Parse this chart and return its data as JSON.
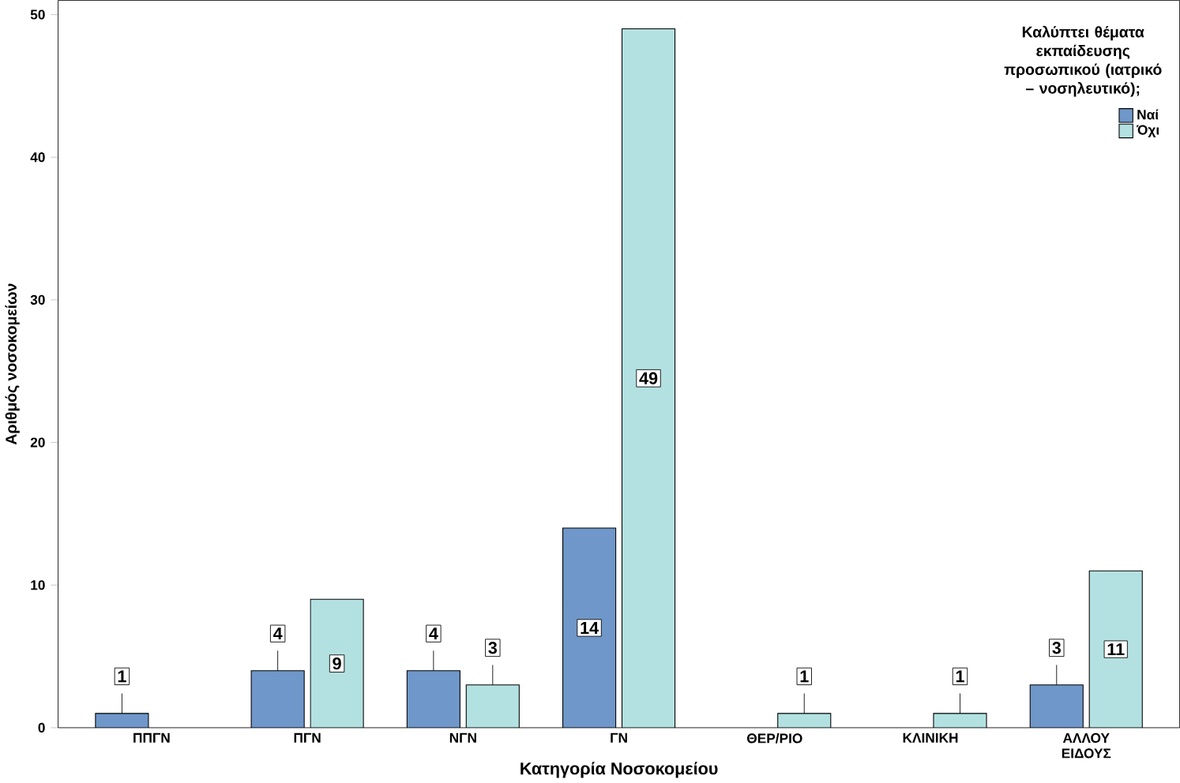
{
  "chart_data": {
    "type": "bar",
    "xlabel": "Κατηγορία Νοσοκομείου",
    "ylabel": "Αριθμός νοσοκομείων",
    "legend_title": "Καλύπτει θέματα εκπαίδευσης προσωπικού (ιατρικό – νοσηλευτικό);",
    "categories": [
      "ΠΠΓΝ",
      "ΠΓΝ",
      "ΝΓΝ",
      "ΓΝ",
      "ΘΕΡ/ΡΙΟ",
      "ΚΛΙΝΙΚΗ",
      "ΑΛΛΟΥ ΕΙΔΟΥΣ"
    ],
    "series": [
      {
        "name": "Ναί",
        "color": "#6f97c9",
        "values": [
          1,
          4,
          4,
          14,
          null,
          null,
          3
        ]
      },
      {
        "name": "Όχι",
        "color": "#b3e1e1",
        "values": [
          null,
          9,
          3,
          49,
          1,
          1,
          11
        ]
      }
    ],
    "ylim": [
      0,
      51
    ],
    "yticks": [
      0,
      10,
      20,
      30,
      40,
      50
    ],
    "data_labels": true,
    "legend": "top right",
    "grid": false
  }
}
